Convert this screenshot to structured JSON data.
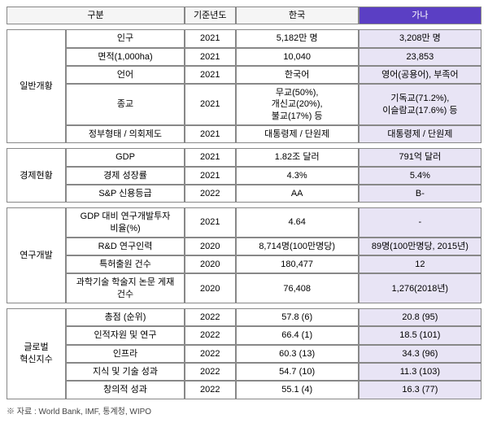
{
  "header": {
    "category": "구분",
    "year": "기준년도",
    "korea": "한국",
    "ghana": "가나"
  },
  "colors": {
    "header_purple_bg": "#5b3fc4",
    "header_purple_fg": "#ffffff",
    "ghana_cell_bg": "#e8e4f5",
    "header_gray_bg": "#f5f5f5",
    "border": "#888888"
  },
  "sections": [
    {
      "category": "일반개황",
      "rows": [
        {
          "sub": "인구",
          "year": "2021",
          "korea": "5,182만 명",
          "ghana": "3,208만 명"
        },
        {
          "sub": "면적(1,000ha)",
          "year": "2021",
          "korea": "10,040",
          "ghana": "23,853"
        },
        {
          "sub": "언어",
          "year": "2021",
          "korea": "한국어",
          "ghana": "영어(공용어), 부족어"
        },
        {
          "sub": "종교",
          "year": "2021",
          "korea": "무교(50%),\n개신교(20%),\n불교(17%) 등",
          "ghana": "기독교(71.2%),\n이슬람교(17.6%) 등"
        },
        {
          "sub": "정부형태 / 의회제도",
          "year": "2021",
          "korea": "대통령제 / 단원제",
          "ghana": "대통령제 / 단원제"
        }
      ]
    },
    {
      "category": "경제현황",
      "rows": [
        {
          "sub": "GDP",
          "year": "2021",
          "korea": "1.82조 달러",
          "ghana": "791억 달러"
        },
        {
          "sub": "경제 성장률",
          "year": "2021",
          "korea": "4.3%",
          "ghana": "5.4%"
        },
        {
          "sub": "S&P 신용등급",
          "year": "2022",
          "korea": "AA",
          "ghana": "B-"
        }
      ]
    },
    {
      "category": "연구개발",
      "rows": [
        {
          "sub": "GDP 대비 연구개발투자\n비율(%)",
          "year": "2021",
          "korea": "4.64",
          "ghana": "-"
        },
        {
          "sub": "R&D 연구인력",
          "year": "2020",
          "korea": "8,714명(100만명당)",
          "ghana": "89명(100만명당, 2015년)"
        },
        {
          "sub": "특허출원 건수",
          "year": "2020",
          "korea": "180,477",
          "ghana": "12"
        },
        {
          "sub": "과학기술 학술지 논문 게재\n건수",
          "year": "2020",
          "korea": "76,408",
          "ghana": "1,276(2018년)"
        }
      ]
    },
    {
      "category": "글로벌\n혁신지수",
      "rows": [
        {
          "sub": "총점 (순위)",
          "year": "2022",
          "korea": "57.8 (6)",
          "ghana": "20.8 (95)"
        },
        {
          "sub": "인적자원 및 연구",
          "year": "2022",
          "korea": "66.4 (1)",
          "ghana": "18.5 (101)"
        },
        {
          "sub": "인프라",
          "year": "2022",
          "korea": "60.3 (13)",
          "ghana": "34.3 (96)"
        },
        {
          "sub": "지식 및 기술 성과",
          "year": "2022",
          "korea": "54.7 (10)",
          "ghana": "11.3 (103)"
        },
        {
          "sub": "창의적 성과",
          "year": "2022",
          "korea": "55.1 (4)",
          "ghana": "16.3 (77)"
        }
      ]
    }
  ],
  "footnote": "※ 자료 : World Bank, IMF, 통계청, WIPO"
}
